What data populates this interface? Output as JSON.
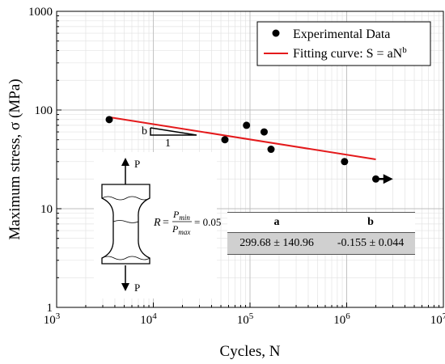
{
  "chart_data": {
    "type": "scatter",
    "title": "",
    "xlabel": "Cycles, N",
    "ylabel": "Maximum stress, σ (MPa)",
    "x_scale": "log",
    "y_scale": "log",
    "xlim": [
      1000,
      10000000
    ],
    "ylim": [
      1,
      1000
    ],
    "x_ticks": [
      {
        "value": 1000,
        "base": "10",
        "exp": "3"
      },
      {
        "value": 10000,
        "base": "10",
        "exp": "4"
      },
      {
        "value": 100000,
        "base": "10",
        "exp": "5"
      },
      {
        "value": 1000000,
        "base": "10",
        "exp": "6"
      },
      {
        "value": 10000000,
        "base": "10",
        "exp": "7"
      }
    ],
    "y_ticks": [
      {
        "value": 1,
        "label": "1"
      },
      {
        "value": 10,
        "label": "10"
      },
      {
        "value": 100,
        "label": "100"
      },
      {
        "value": 1000,
        "label": "1000"
      }
    ],
    "grid": true,
    "legend_position": "top-right",
    "series": [
      {
        "name": "Experimental Data",
        "kind": "scatter",
        "color": "#000000",
        "points": [
          {
            "x": 3500,
            "y": 80
          },
          {
            "x": 55000,
            "y": 50
          },
          {
            "x": 92000,
            "y": 70
          },
          {
            "x": 140000,
            "y": 60
          },
          {
            "x": 165000,
            "y": 40
          },
          {
            "x": 950000,
            "y": 30
          }
        ]
      },
      {
        "name": "Fitting curve: S = aN",
        "name_sup": "b",
        "kind": "line",
        "color": "#e41a1c",
        "x_range": [
          3500,
          2000000
        ],
        "a": 299.68,
        "b": -0.155
      }
    ],
    "runout": {
      "x": 2000000,
      "y": 20,
      "arrow_to_x": 2900000
    },
    "slope_triangle": {
      "b_label": "b",
      "run_label": "1"
    },
    "specimen_inset": {
      "load_top": "P",
      "load_bottom": "P",
      "r_lhs": "R",
      "r_num_sym": "P",
      "r_num_sub": "min",
      "r_den_sym": "P",
      "r_den_sub": "max",
      "r_rhs": "= 0.05"
    },
    "fit_table": {
      "headers": [
        "a",
        "b"
      ],
      "values": [
        "299.68 ± 140.96",
        "-0.155 ± 0.044"
      ]
    }
  }
}
